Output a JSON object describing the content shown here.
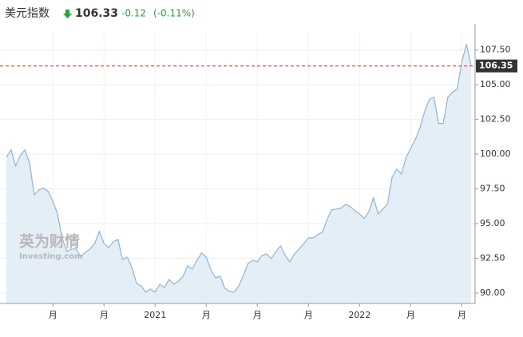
{
  "chart_data": {
    "type": "area",
    "title": "美元指数",
    "price": 106.33,
    "change": -0.12,
    "change_pct": "(-0.11%)",
    "watermark": [
      "英为财情",
      "Investing.com"
    ],
    "categories": [
      null,
      null,
      null,
      null,
      null,
      null,
      null,
      null,
      null,
      null,
      "月",
      null,
      null,
      null,
      null,
      null,
      null,
      null,
      null,
      null,
      null,
      "月",
      null,
      null,
      null,
      null,
      null,
      null,
      null,
      null,
      null,
      null,
      "2021",
      null,
      null,
      null,
      null,
      null,
      null,
      null,
      null,
      null,
      null,
      "月",
      null,
      null,
      null,
      null,
      null,
      null,
      null,
      null,
      null,
      null,
      "月",
      null,
      null,
      null,
      null,
      null,
      null,
      null,
      null,
      null,
      null,
      "月",
      null,
      null,
      null,
      null,
      null,
      null,
      null,
      null,
      null,
      null,
      "2022",
      null,
      null,
      null,
      null,
      null,
      null,
      null,
      null,
      null,
      null,
      "月",
      null,
      null,
      null,
      null,
      null,
      null,
      null,
      null,
      null,
      null,
      "月",
      null,
      null
    ],
    "values": [
      99.79,
      100.31,
      99.16,
      99.91,
      100.31,
      99.33,
      97.07,
      97.43,
      97.55,
      97.32,
      96.62,
      95.7,
      93.97,
      92.99,
      93.17,
      93.17,
      92.59,
      92.94,
      93.17,
      93.57,
      94.44,
      93.57,
      93.28,
      93.69,
      93.86,
      92.42,
      92.59,
      91.84,
      90.69,
      90.52,
      90.06,
      90.29,
      90.06,
      90.63,
      90.4,
      90.98,
      90.63,
      90.86,
      91.21,
      91.96,
      91.73,
      92.36,
      92.88,
      92.59,
      91.67,
      91.09,
      91.21,
      90.35,
      90.12,
      90.06,
      90.52,
      91.27,
      92.13,
      92.36,
      92.25,
      92.71,
      92.82,
      92.48,
      93.0,
      93.4,
      92.71,
      92.25,
      92.82,
      93.17,
      93.57,
      93.97,
      93.97,
      94.21,
      94.38,
      95.3,
      95.99,
      96.05,
      96.11,
      96.39,
      96.22,
      95.93,
      95.7,
      95.36,
      95.88,
      96.85,
      95.7,
      96.05,
      96.39,
      98.35,
      98.93,
      98.58,
      99.74,
      100.43,
      101.06,
      101.92,
      103.08,
      103.94,
      104.11,
      102.21,
      102.21,
      104.11,
      104.46,
      104.69,
      106.65,
      107.91,
      106.35
    ],
    "color": "#8fb4d6",
    "fill": "#e4eef6",
    "ylim": [
      89.25,
      108.8
    ],
    "yticks": [
      {
        "value": 90,
        "label": "90.00"
      },
      {
        "value": 92.5,
        "label": "92.50"
      },
      {
        "value": 95,
        "label": "95.00"
      },
      {
        "value": 97.5,
        "label": "97.50"
      },
      {
        "value": 100,
        "label": "100.00"
      },
      {
        "value": 102.5,
        "label": "102.50"
      },
      {
        "value": 105,
        "label": "105.00"
      },
      {
        "value": 107.5,
        "label": "107.50"
      }
    ],
    "reference_line": 106.35,
    "reference_color": "#c0392b",
    "grid": true
  }
}
